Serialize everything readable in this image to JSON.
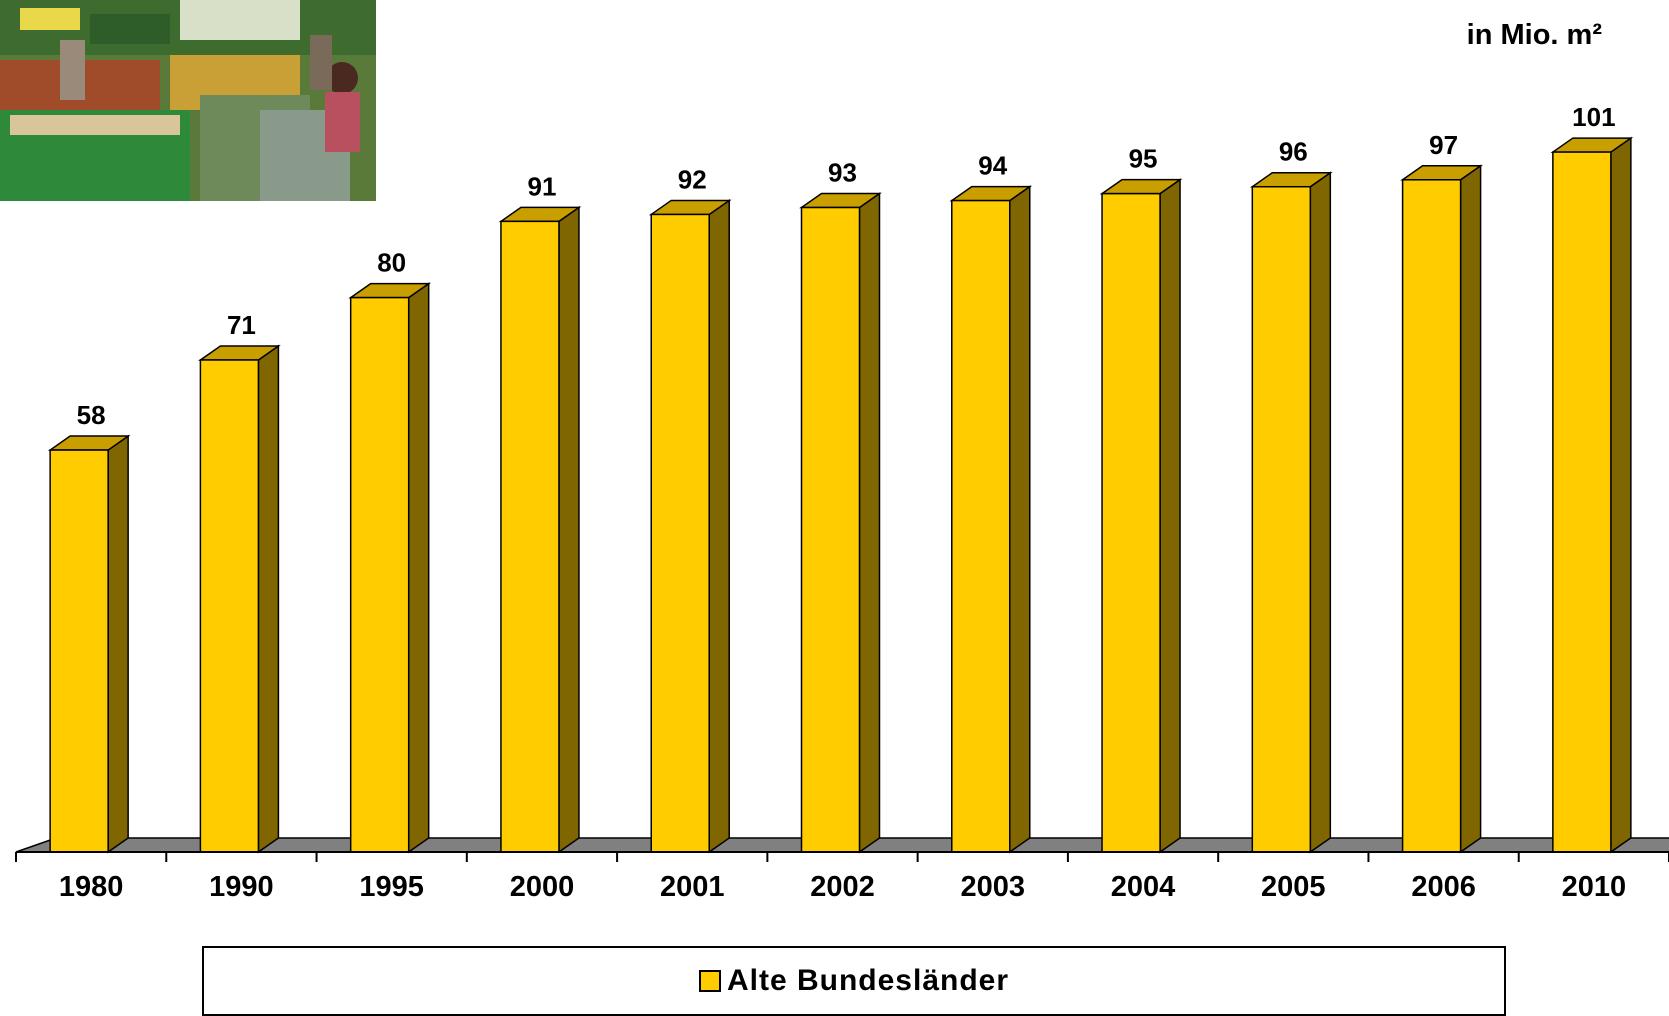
{
  "unit_label": "in Mio. m²",
  "legend": {
    "label": "Alte Bundesländer"
  },
  "photo": {
    "icon": "supermarket-photo"
  },
  "colors": {
    "bar_front": "#ffcc00",
    "bar_top": "#c99f00",
    "bar_side": "#806600",
    "floor": "#808080"
  },
  "chart_data": {
    "type": "bar",
    "categories": [
      "1980",
      "1990",
      "1995",
      "2000",
      "2001",
      "2002",
      "2003",
      "2004",
      "2005",
      "2006",
      "2010"
    ],
    "series": [
      {
        "name": "Alte Bundesländer",
        "values": [
          58,
          71,
          80,
          91,
          92,
          93,
          94,
          95,
          96,
          97,
          101
        ]
      }
    ],
    "data_labels": [
      "58",
      "71",
      "80",
      "91",
      "92",
      "93",
      "94",
      "95",
      "96",
      "97",
      "101"
    ],
    "ylabel": "in Mio. m²",
    "ylim": [
      0,
      120
    ],
    "grid": false,
    "legend_position": "bottom"
  }
}
